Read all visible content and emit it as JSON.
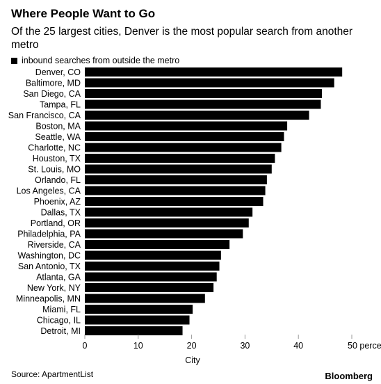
{
  "title": "Where People Want to Go",
  "subtitle": "Of the 25 largest cities, Denver is the most popular search from another metro",
  "source": "Source: ApartmentList",
  "brand": "Bloomberg",
  "chart_data": {
    "type": "bar",
    "orientation": "horizontal",
    "categories": [
      "Denver, CO",
      "Baltimore, MD",
      "San Diego, CA",
      "Tampa, FL",
      "San Francisco, CA",
      "Boston, MA",
      "Seattle, WA",
      "Charlotte, NC",
      "Houston, TX",
      "St. Louis, MO",
      "Orlando, FL",
      "Los Angeles, CA",
      "Phoenix, AZ",
      "Dallas, TX",
      "Portland, OR",
      "Philadelphia, PA",
      "Riverside, CA",
      "Washington, DC",
      "San Antonio, TX",
      "Atlanta, GA",
      "New York, NY",
      "Minneapolis, MN",
      "Miami, FL",
      "Chicago, IL",
      "Detroit, MI"
    ],
    "series": [
      {
        "name": "inbound searches from outside the metro",
        "values": [
          48.2,
          46.7,
          44.4,
          44.2,
          42.0,
          37.9,
          37.3,
          36.8,
          35.6,
          35.0,
          34.1,
          33.8,
          33.4,
          31.4,
          30.7,
          29.6,
          27.1,
          25.5,
          25.2,
          24.7,
          24.1,
          22.5,
          20.2,
          19.6,
          18.3
        ]
      }
    ],
    "xlim": [
      0,
      50
    ],
    "xticks": [
      "0",
      "10",
      "20",
      "30",
      "40",
      "50 percent"
    ],
    "xlabel": "City",
    "colors": {
      "bar": "#000000",
      "tick": "#999999"
    },
    "grid": false,
    "legend": "top-left"
  }
}
